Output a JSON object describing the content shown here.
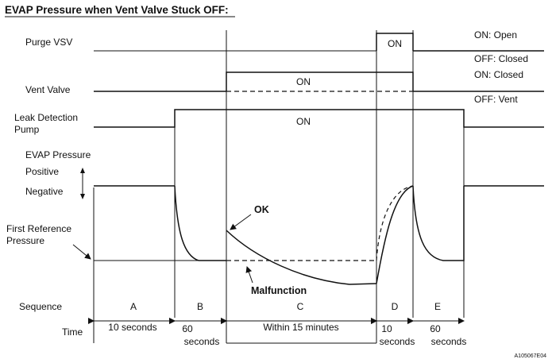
{
  "title": "EVAP Pressure when Vent Valve Stuck OFF:",
  "rows": {
    "purge_vsv": "Purge VSV",
    "vent_valve": "Vent Valve",
    "leak_pump_line1": "Leak Detection",
    "leak_pump_line2": "Pump",
    "evap_pressure": "EVAP Pressure",
    "positive": "Positive",
    "negative": "Negative",
    "first_ref_line1": "First Reference",
    "first_ref_line2": "Pressure",
    "sequence": "Sequence",
    "time": "Time"
  },
  "right_labels": {
    "purge_on": "ON: Open",
    "purge_off": "OFF: Closed",
    "vent_on": "ON: Closed",
    "vent_off": "OFF: Vent"
  },
  "on_labels": {
    "purge": "ON",
    "vent": "ON",
    "pump": "ON"
  },
  "annotations": {
    "ok": "OK",
    "malfunction": "Malfunction"
  },
  "sequence": [
    "A",
    "B",
    "C",
    "D",
    "E"
  ],
  "time": {
    "a": "10 seconds",
    "b_line1": "60",
    "b_line2": "seconds",
    "c": "Within 15 minutes",
    "d_line1": "10",
    "d_line2": "seconds",
    "e_line1": "60",
    "e_line2": "seconds"
  },
  "figure_id": "A105067E04"
}
